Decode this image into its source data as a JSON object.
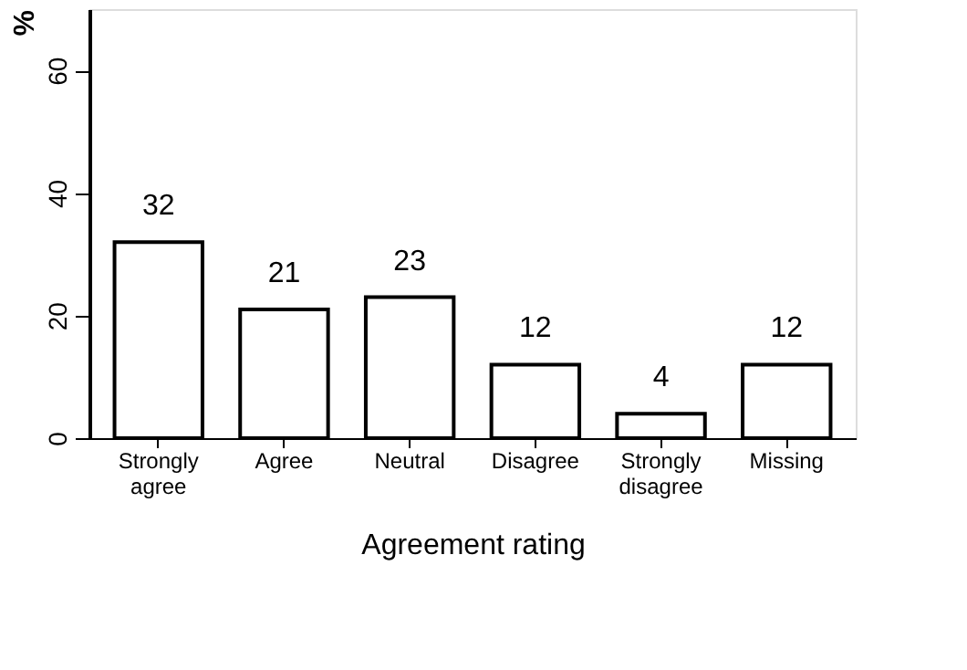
{
  "chart_data": {
    "type": "bar",
    "xlabel": "Agreement rating",
    "ylabel": "%",
    "categories": [
      "Strongly agree",
      "Agree",
      "Neutral",
      "Disagree",
      "Strongly disagree",
      "Missing"
    ],
    "values": [
      32,
      21,
      23,
      12,
      4,
      12
    ],
    "color": "#ffffff",
    "data_labels": true,
    "ylim": [
      0,
      70
    ],
    "yticks": [
      0,
      20,
      40,
      60
    ],
    "grid": false
  }
}
